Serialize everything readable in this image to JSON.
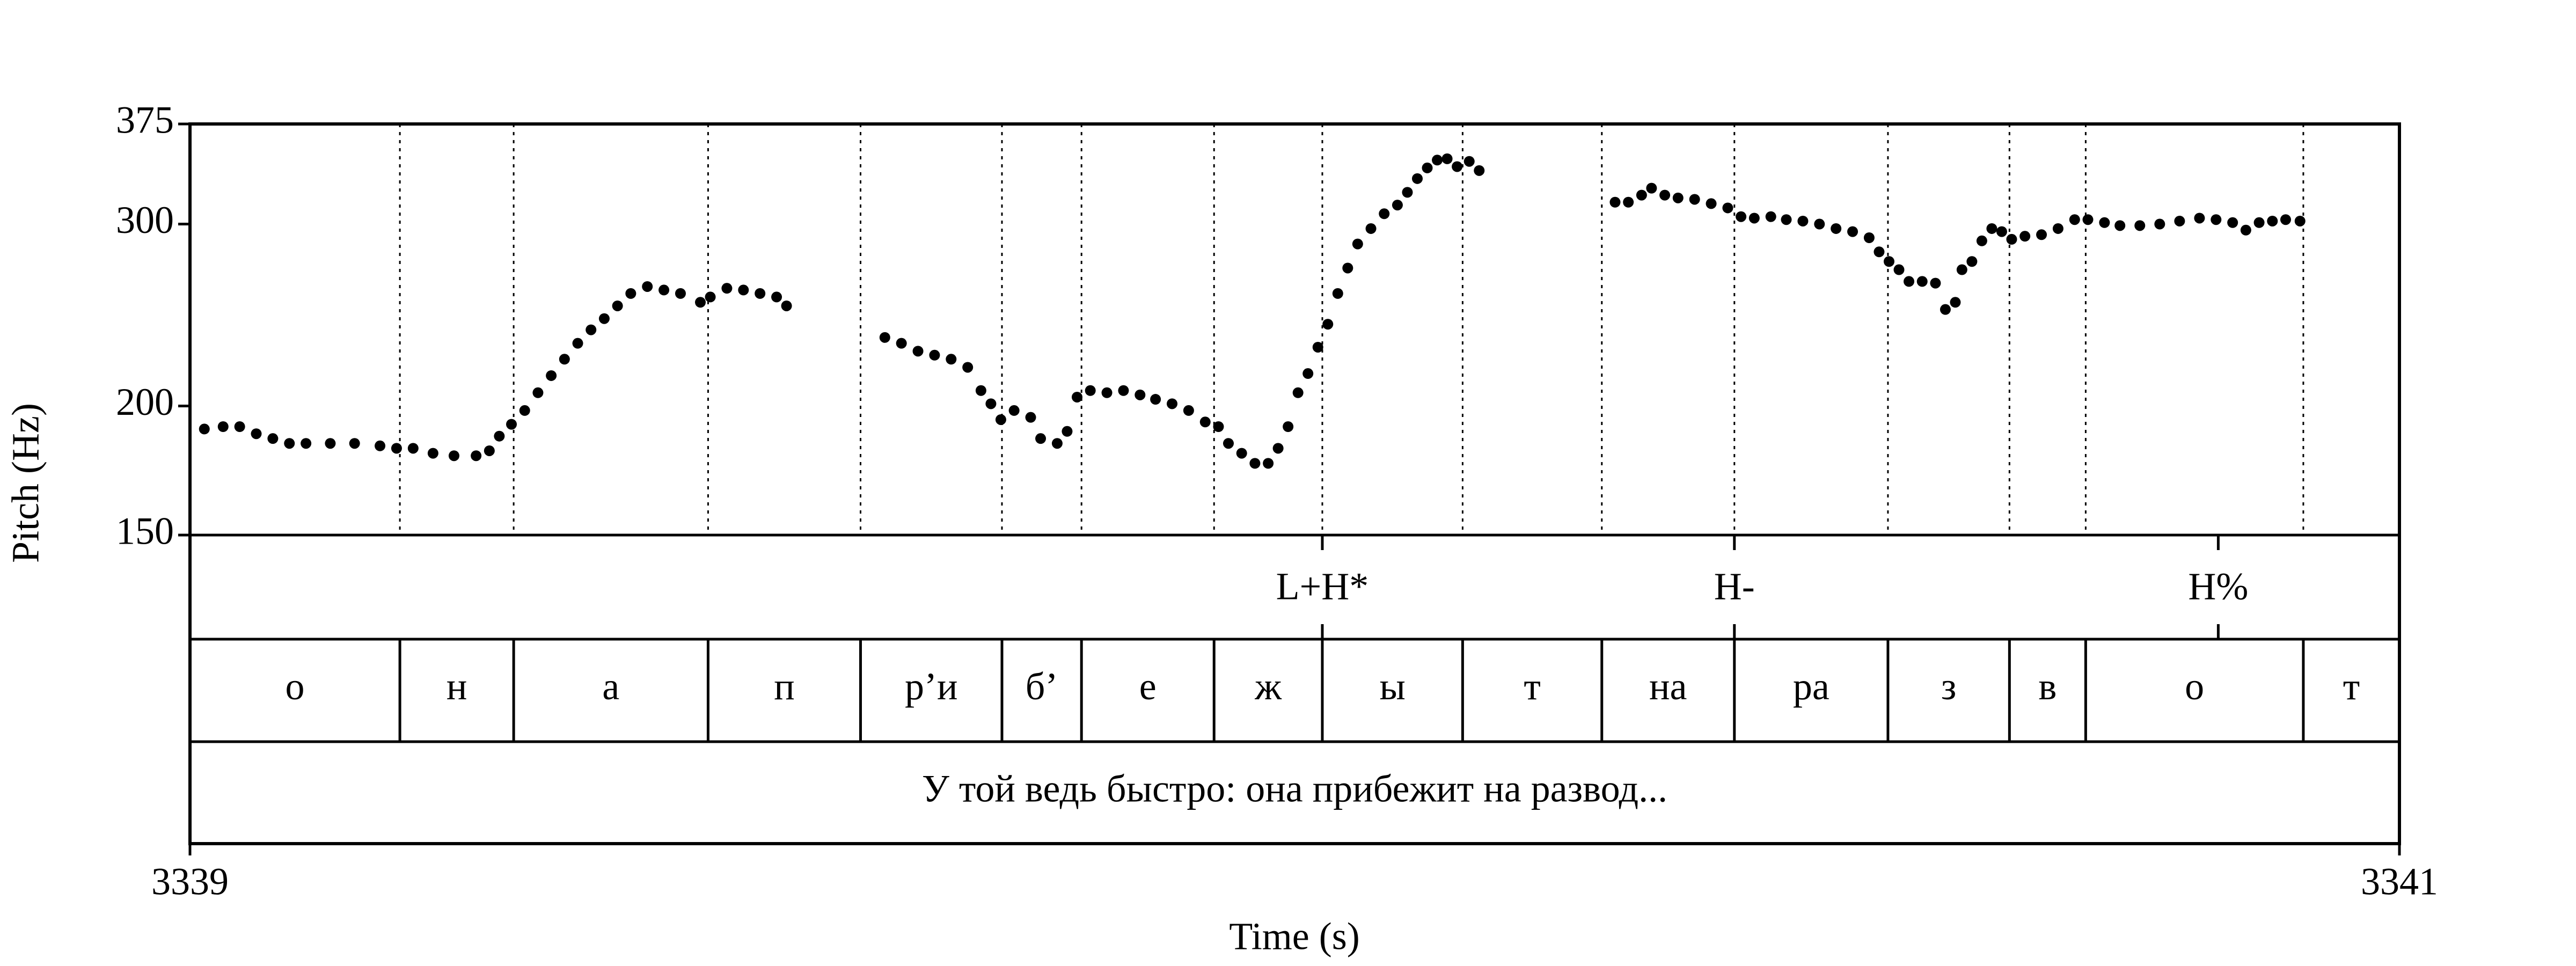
{
  "chart_data": {
    "type": "scatter",
    "x_label": "Time (s)",
    "y_label": "Pitch (Hz)",
    "xlim": [
      3339,
      3341
    ],
    "xticks": [
      3339,
      3341
    ],
    "ylim": [
      150,
      375
    ],
    "yticks": [
      150,
      200,
      300,
      375
    ],
    "log_y": true,
    "color": "#000000",
    "x": [
      3339.013,
      3339.03,
      3339.045,
      3339.06,
      3339.075,
      3339.09,
      3339.105,
      3339.127,
      3339.149,
      3339.172,
      3339.187,
      3339.202,
      3339.22,
      3339.239,
      3339.259,
      3339.271,
      3339.28,
      3339.291,
      3339.303,
      3339.315,
      3339.327,
      3339.339,
      3339.351,
      3339.363,
      3339.375,
      3339.387,
      3339.399,
      3339.414,
      3339.429,
      3339.444,
      3339.462,
      3339.471,
      3339.486,
      3339.501,
      3339.516,
      3339.531,
      3339.54,
      3339.629,
      3339.644,
      3339.659,
      3339.674,
      3339.689,
      3339.704,
      3339.716,
      3339.725,
      3339.734,
      3339.746,
      3339.761,
      3339.77,
      3339.785,
      3339.794,
      3339.803,
      3339.815,
      3339.83,
      3339.845,
      3339.86,
      3339.874,
      3339.889,
      3339.904,
      3339.919,
      3339.931,
      3339.94,
      3339.952,
      3339.964,
      3339.976,
      3339.985,
      3339.994,
      3340.003,
      3340.012,
      3340.021,
      3340.03,
      3340.039,
      3340.048,
      3340.057,
      3340.069,
      3340.081,
      3340.093,
      3340.102,
      3340.111,
      3340.12,
      3340.129,
      3340.138,
      3340.147,
      3340.158,
      3340.167,
      3340.29,
      3340.302,
      3340.314,
      3340.323,
      3340.335,
      3340.347,
      3340.362,
      3340.377,
      3340.392,
      3340.404,
      3340.416,
      3340.431,
      3340.445,
      3340.46,
      3340.475,
      3340.49,
      3340.505,
      3340.52,
      3340.529,
      3340.538,
      3340.547,
      3340.556,
      3340.568,
      3340.58,
      3340.589,
      3340.598,
      3340.604,
      3340.613,
      3340.622,
      3340.631,
      3340.64,
      3340.649,
      3340.661,
      3340.676,
      3340.691,
      3340.706,
      3340.718,
      3340.733,
      3340.747,
      3340.765,
      3340.783,
      3340.801,
      3340.819,
      3340.834,
      3340.849,
      3340.861,
      3340.873,
      3340.885,
      3340.897,
      3340.91
    ],
    "y": [
      190,
      191,
      191,
      188,
      186,
      184,
      184,
      184,
      184,
      183,
      182,
      182,
      180,
      179,
      179,
      181,
      187,
      192,
      198,
      206,
      214,
      222,
      230,
      237,
      243,
      250,
      257,
      261,
      259,
      257,
      252,
      255,
      260,
      259,
      257,
      255,
      250,
      233,
      230,
      226,
      224,
      222,
      218,
      207,
      201,
      194,
      198,
      195,
      186,
      184,
      189,
      204,
      207,
      206,
      207,
      205,
      203,
      201,
      198,
      193,
      191,
      184,
      180,
      176,
      176,
      182,
      191,
      206,
      215,
      228,
      240,
      257,
      272,
      287,
      297,
      307,
      313,
      322,
      332,
      340,
      346,
      347,
      341,
      345,
      338,
      315,
      315,
      320,
      325,
      320,
      318,
      317,
      314,
      311,
      305,
      304,
      305,
      303,
      302,
      300,
      297,
      295,
      291,
      282,
      276,
      271,
      264,
      264,
      263,
      248,
      252,
      271,
      276,
      289,
      297,
      295,
      290,
      292,
      293,
      297,
      303,
      303,
      301,
      299,
      299,
      300,
      302,
      304,
      303,
      301,
      296,
      301,
      302,
      303,
      302
    ],
    "tones": [
      {
        "label": "L+H*",
        "time": 3340.025
      },
      {
        "label": "H-",
        "time": 3340.398
      },
      {
        "label": "H%",
        "time": 3340.836
      }
    ],
    "segments": {
      "boundaries": [
        3339,
        3339.19,
        3339.293,
        3339.469,
        3339.607,
        3339.735,
        3339.807,
        3339.927,
        3340.025,
        3340.152,
        3340.278,
        3340.398,
        3340.537,
        3340.647,
        3340.716,
        3340.913,
        3341
      ],
      "labels": [
        "о",
        "н",
        "а",
        "п",
        "р’и",
        "б’",
        "е",
        "ж",
        "ы",
        "т",
        "на",
        "ра",
        "з",
        "в",
        "о",
        "т"
      ]
    },
    "sentence": "У той ведь быстро: она прибежит на развод..."
  }
}
